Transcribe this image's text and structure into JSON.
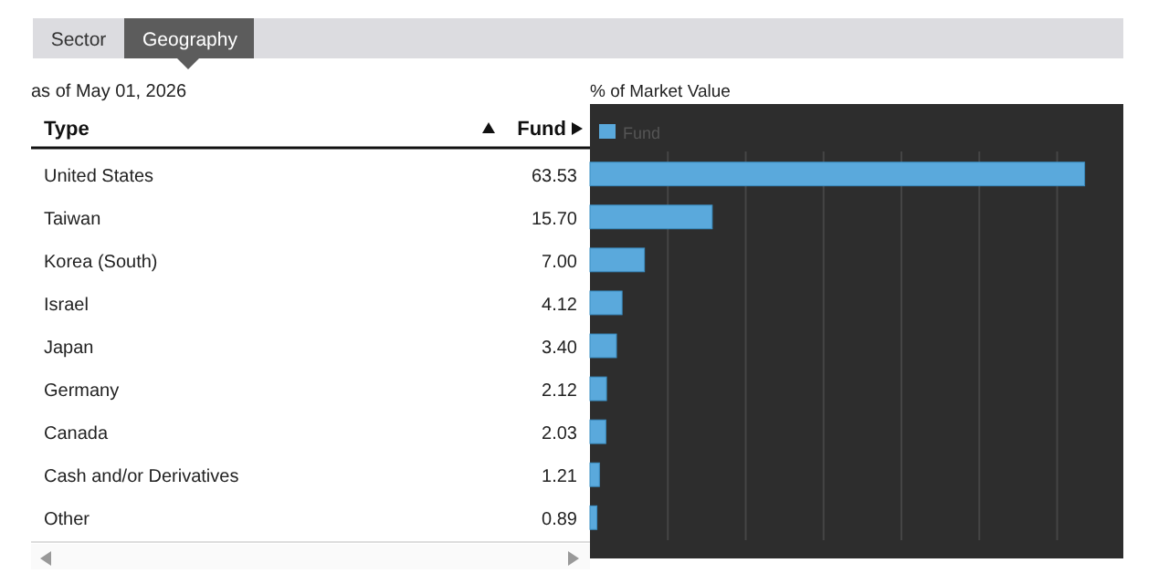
{
  "chart_data": {
    "type": "bar",
    "orientation": "horizontal",
    "subtitle": "as of May 01, 2026",
    "xlabel": "% of Market Value",
    "ylabel": "Type",
    "annotations": [
      "Sector",
      "Geography",
      "Fund"
    ],
    "categories": [
      "United States",
      "Taiwan",
      "Korea (South)",
      "Israel",
      "Japan",
      "Germany",
      "Canada",
      "Cash and/or Derivatives",
      "Other"
    ],
    "series": [
      {
        "name": "Fund",
        "color": "#5aa9dc",
        "values": [
          63.53,
          15.7,
          7.0,
          4.12,
          3.4,
          2.12,
          2.03,
          1.21,
          0.89
        ],
        "value_labels": [
          "63.53",
          "15.70",
          "7.00",
          "4.12",
          "3.40",
          "2.12",
          "2.03",
          "1.21",
          "0.89"
        ]
      }
    ],
    "xlim": [
      0,
      68.5
    ],
    "xticks": [
      {
        "value": 0,
        "label": null
      },
      {
        "value": 10,
        "label": null
      },
      {
        "value": 20,
        "label": null
      },
      {
        "value": 30,
        "label": null
      },
      {
        "value": 40,
        "label": null
      },
      {
        "value": 50,
        "label": null
      },
      {
        "value": 60,
        "label": null
      }
    ],
    "grid": "x",
    "legend": "top left",
    "tick_labels": "y"
  }
}
